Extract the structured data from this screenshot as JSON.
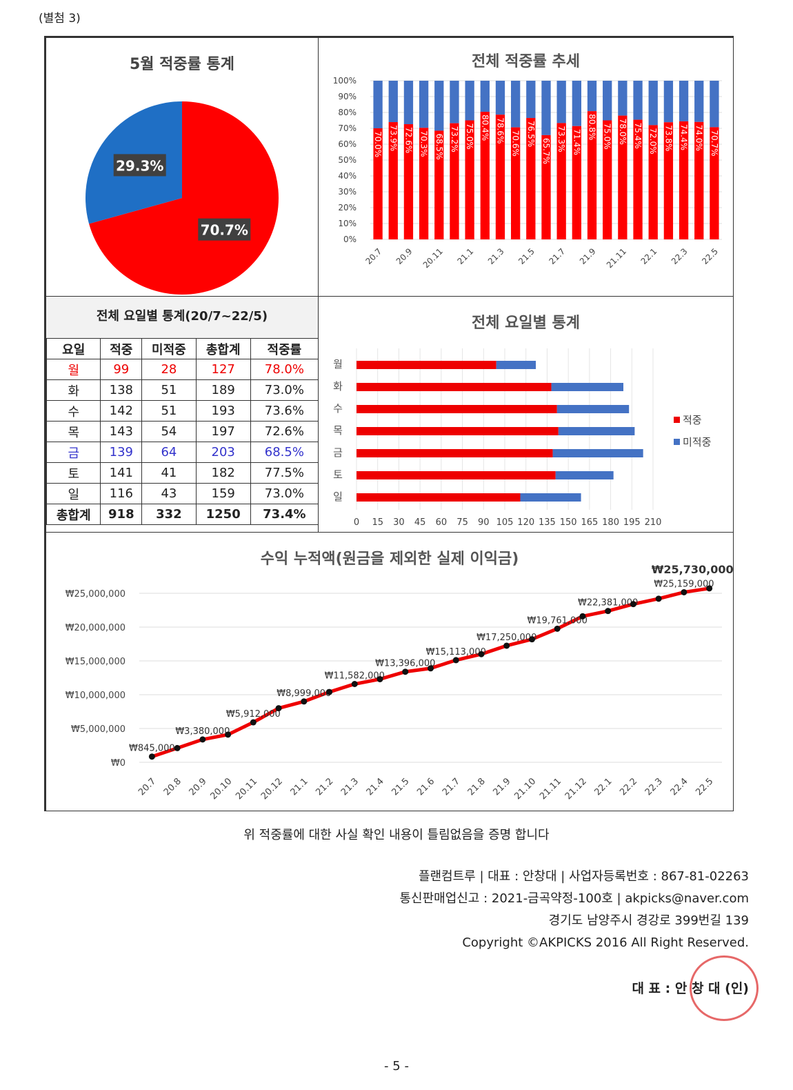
{
  "attachment": "(별첨 3)",
  "pie": {
    "title": "5월 적중률 통계",
    "chart_data": {
      "type": "pie",
      "labels": [
        "적중",
        "미적중"
      ],
      "values": [
        70.7,
        29.3
      ],
      "value_labels": [
        "70.7%",
        "29.3%"
      ],
      "colors": [
        "#ff0000",
        "#1f6fc5"
      ]
    }
  },
  "trend": {
    "title": "전체 적중률 추세",
    "chart_data": {
      "type": "bar",
      "stacked": true,
      "categories": [
        "20.7",
        "20.8",
        "20.9",
        "20.10",
        "20.11",
        "20.12",
        "21.1",
        "21.2",
        "21.3",
        "21.4",
        "21.5",
        "21.6",
        "21.7",
        "21.8",
        "21.9",
        "21.10",
        "21.11",
        "21.12",
        "22.1",
        "22.2",
        "22.3",
        "22.4",
        "22.5"
      ],
      "tick_labels": [
        "20.7",
        "20.9",
        "20.11",
        "21.1",
        "21.3",
        "21.5",
        "21.7",
        "21.9",
        "21.11",
        "22.1",
        "22.3",
        "22.5"
      ],
      "values": [
        70.0,
        73.9,
        72.6,
        70.3,
        68.5,
        73.2,
        75.0,
        80.4,
        78.6,
        70.6,
        76.5,
        65.7,
        73.3,
        71.4,
        80.8,
        75.0,
        78.0,
        75.4,
        72.0,
        73.8,
        74.4,
        74.0,
        70.7
      ],
      "yticks": [
        "0%",
        "10%",
        "20%",
        "30%",
        "40%",
        "50%",
        "60%",
        "70%",
        "80%",
        "90%",
        "100%"
      ],
      "ylim": [
        0,
        100
      ],
      "colors": {
        "hit": "#ff0000",
        "miss": "#4472c4"
      }
    }
  },
  "table": {
    "title": "전체 요일별 통계(20/7~22/5)",
    "headers": [
      "요일",
      "적중",
      "미적중",
      "총합계",
      "적중률"
    ],
    "rows": [
      [
        "월",
        "99",
        "28",
        "127",
        "78.0%"
      ],
      [
        "화",
        "138",
        "51",
        "189",
        "73.0%"
      ],
      [
        "수",
        "142",
        "51",
        "193",
        "73.6%"
      ],
      [
        "목",
        "143",
        "54",
        "197",
        "72.6%"
      ],
      [
        "금",
        "139",
        "64",
        "203",
        "68.5%"
      ],
      [
        "토",
        "141",
        "41",
        "182",
        "77.5%"
      ],
      [
        "일",
        "116",
        "43",
        "159",
        "73.0%"
      ]
    ],
    "total": [
      "총합계",
      "918",
      "332",
      "1250",
      "73.4%"
    ]
  },
  "daybar": {
    "title": "전체 요일별 통계",
    "chart_data": {
      "type": "bar",
      "orientation": "horizontal",
      "stacked": true,
      "categories": [
        "월",
        "화",
        "수",
        "목",
        "금",
        "토",
        "일"
      ],
      "series": [
        {
          "name": "적중",
          "values": [
            99,
            138,
            142,
            143,
            139,
            141,
            116
          ]
        },
        {
          "name": "미적중",
          "values": [
            28,
            51,
            51,
            54,
            64,
            41,
            43
          ]
        }
      ],
      "xticks": [
        "0",
        "15",
        "30",
        "45",
        "60",
        "75",
        "90",
        "105",
        "120",
        "135",
        "150",
        "165",
        "180",
        "195",
        "210"
      ],
      "xlim": [
        0,
        210
      ],
      "legend": "right"
    }
  },
  "profit": {
    "title": "수익 누적액(원금을 제외한 실제 이익금)",
    "chart_data": {
      "type": "line",
      "x": [
        "20.7",
        "20.8",
        "20.9",
        "20.10",
        "20.11",
        "20.12",
        "21.1",
        "21.2",
        "21.3",
        "21.4",
        "21.5",
        "21.6",
        "21.7",
        "21.8",
        "21.9",
        "21.10",
        "21.11",
        "21.12",
        "22.1",
        "22.2",
        "22.3",
        "22.4",
        "22.5"
      ],
      "y": [
        845000,
        2100000,
        3380000,
        4100000,
        5912000,
        8000000,
        8999000,
        10400000,
        11582000,
        12300000,
        13396000,
        13900000,
        15113000,
        16000000,
        17250000,
        18200000,
        19761000,
        21600000,
        22381000,
        23400000,
        24200000,
        25159000,
        25730000
      ],
      "data_labels": {
        "0": "₩845,000",
        "2": "₩3,380,000",
        "4": "₩5,912,000",
        "6": "₩8,999,000",
        "8": "₩11,582,000",
        "10": "₩13,396,000",
        "12": "₩15,113,000",
        "14": "₩17,250,000",
        "16": "₩19,761,000",
        "18": "₩22,381,000",
        "21": "₩25,159,000",
        "22": "₩25,730,000"
      },
      "yticks": [
        "₩0",
        "₩5,000,000",
        "₩10,000,000",
        "₩15,000,000",
        "₩20,000,000",
        "₩25,000,000"
      ],
      "ylim": [
        0,
        25000000
      ]
    }
  },
  "certify": "위 적중률에 대한 사실 확인 내용이 틀림없음을 증명 합니다",
  "footer": [
    "플랜컴트루  |  대표 : 안창대  |  사업자등록번호 : 867-81-02263",
    "통신판매업신고 : 2021-금곡약정-100호  |  akpicks@naver.com",
    "경기도 남양주시 경강로 399번길 139",
    "Copyright ©AKPICKS 2016 All Right Reserved."
  ],
  "signature": "대 표 : 안 창 대  (인)",
  "page_number": "- 5 -"
}
